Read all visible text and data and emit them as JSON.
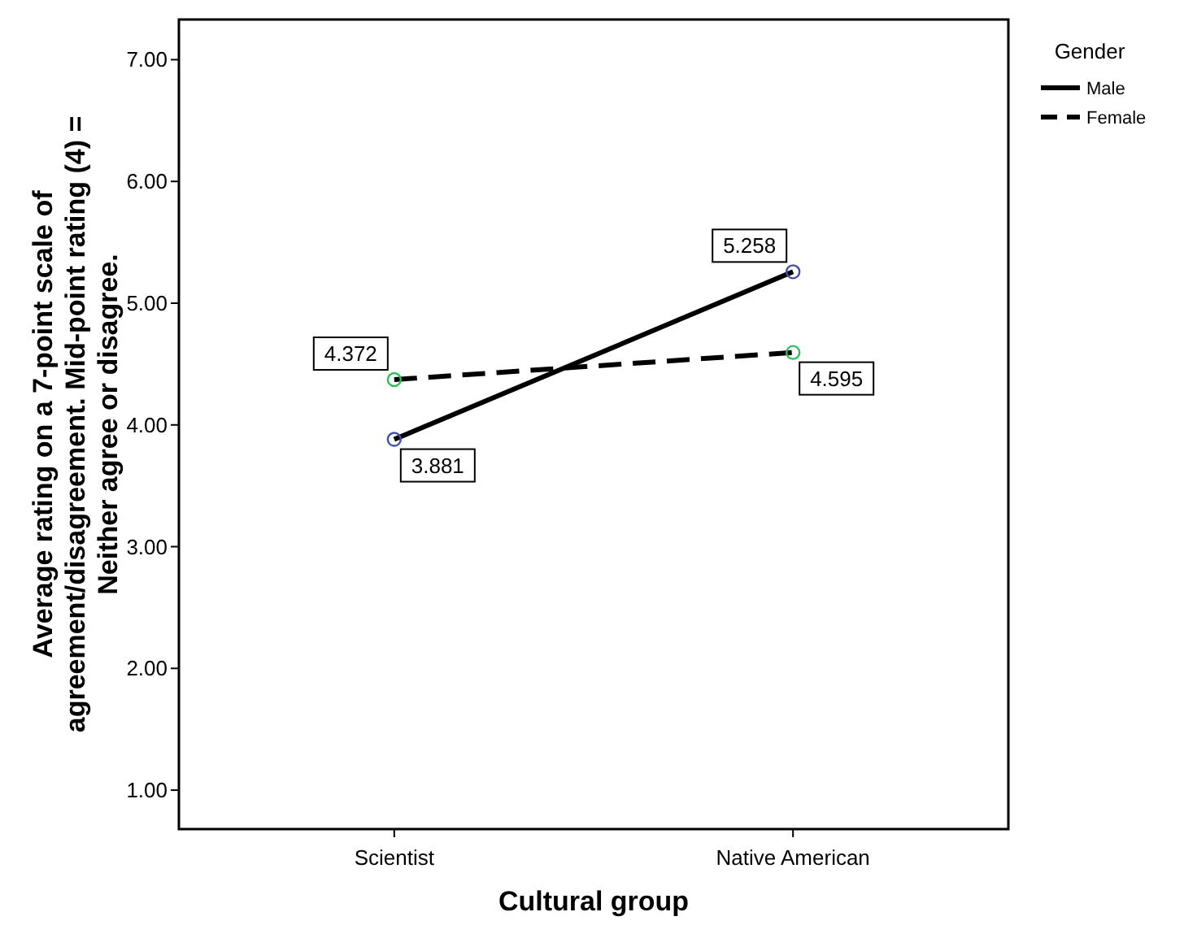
{
  "chart_data": {
    "type": "line",
    "xlabel": "Cultural group",
    "ylabel": "Average rating on a 7-point scale of\nagreement/disagreement. Mid-point rating (4) =\nNeither agree or disagree.",
    "legend_title": "Gender",
    "legend": "top right",
    "marker": "circle",
    "data_labels": true,
    "grid": false,
    "categories": [
      "Scientist",
      "Native American"
    ],
    "ylim": [
      0.68,
      7.33
    ],
    "yticks": [
      {
        "value": 1,
        "label": "1.00"
      },
      {
        "value": 2,
        "label": "2.00"
      },
      {
        "value": 3,
        "label": "3.00"
      },
      {
        "value": 4,
        "label": "4.00"
      },
      {
        "value": 5,
        "label": "5.00"
      },
      {
        "value": 6,
        "label": "6.00"
      },
      {
        "value": 7,
        "label": "7.00"
      }
    ],
    "series": [
      {
        "name": "Male",
        "color": "#000000",
        "colors": [
          "#3f4fa8",
          "#3f4fa8"
        ],
        "line_style": "solid",
        "values": [
          3.881,
          5.258
        ]
      },
      {
        "name": "Female",
        "color": "#000000",
        "colors": [
          "#2fbf5a",
          "#2fbf5a"
        ],
        "line_style": "dashed",
        "values": [
          4.372,
          4.595
        ]
      }
    ]
  }
}
